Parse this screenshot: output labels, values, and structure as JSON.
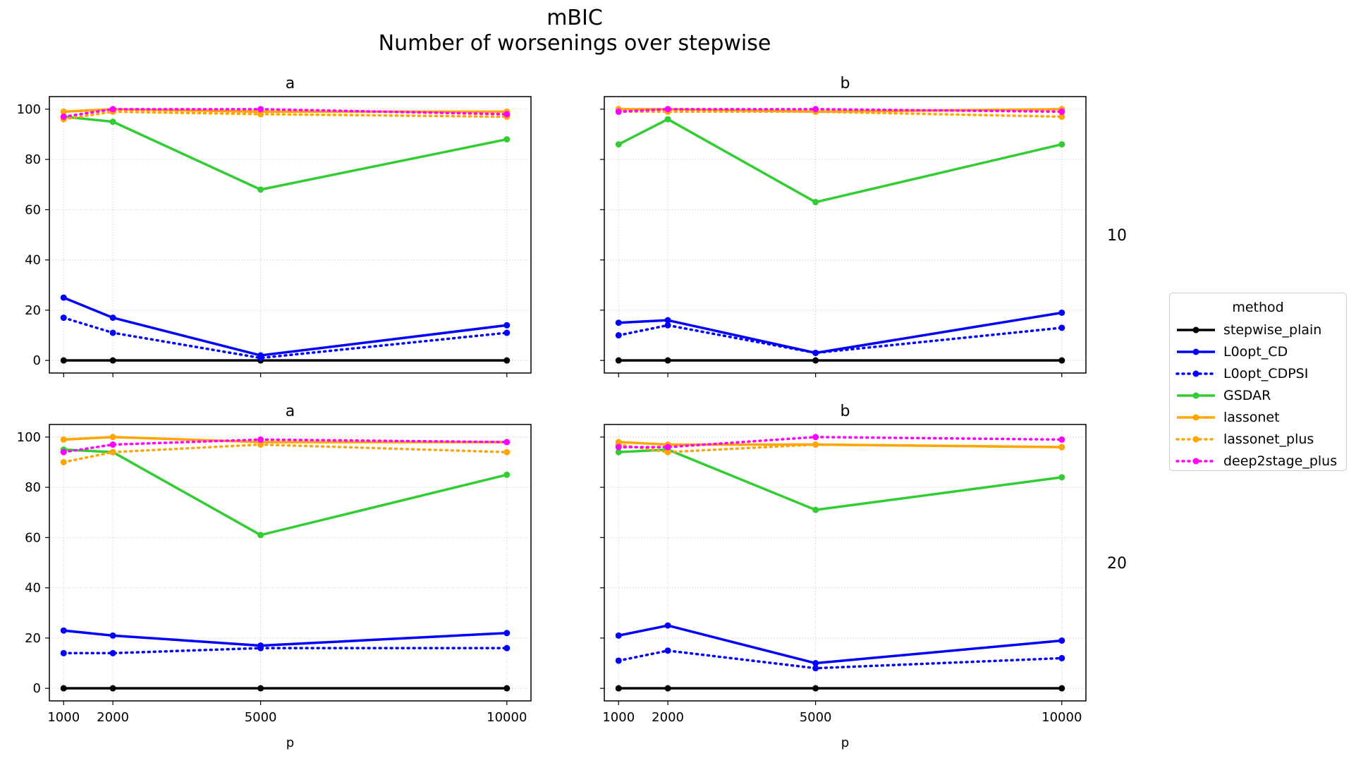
{
  "figure": {
    "title_line1": "mBIC",
    "title_line2": "Number of worsenings over stepwise"
  },
  "legend": {
    "title": "method",
    "items": [
      {
        "label": "stepwise_plain",
        "color": "#000000",
        "style": "solid"
      },
      {
        "label": "L0opt_CD",
        "color": "#0000ff",
        "style": "solid"
      },
      {
        "label": "L0opt_CDPSI",
        "color": "#0000ff",
        "style": "dotted"
      },
      {
        "label": "GSDAR",
        "color": "#32cd32",
        "style": "solid"
      },
      {
        "label": "lassonet",
        "color": "#ffa500",
        "style": "solid"
      },
      {
        "label": "lassonet_plus",
        "color": "#ffa500",
        "style": "dotted"
      },
      {
        "label": "deep2stage_plus",
        "color": "#ff00ff",
        "style": "dotted"
      }
    ]
  },
  "chart_data": {
    "type": "line",
    "x": [
      1000,
      2000,
      5000,
      10000
    ],
    "xticks": [
      "1000",
      "2000",
      "5000",
      "10000"
    ],
    "yticks": [
      "0",
      "20",
      "40",
      "60",
      "80",
      "100"
    ],
    "xlabel": "p",
    "ylim": [
      -5,
      105
    ],
    "xlim": [
      710,
      10490
    ],
    "grid": true,
    "legend_position": "right",
    "row_labels": [
      "10",
      "20"
    ],
    "panels": [
      {
        "title": "a",
        "row": 0,
        "col": 0,
        "series": [
          {
            "name": "stepwise_plain",
            "values": [
              0,
              0,
              0,
              0
            ]
          },
          {
            "name": "L0opt_CD",
            "values": [
              25,
              17,
              2,
              14
            ]
          },
          {
            "name": "L0opt_CDPSI",
            "values": [
              17,
              11,
              1,
              11
            ]
          },
          {
            "name": "GSDAR",
            "values": [
              97,
              95,
              68,
              88
            ]
          },
          {
            "name": "lassonet",
            "values": [
              99,
              100,
              99,
              99
            ]
          },
          {
            "name": "lassonet_plus",
            "values": [
              96,
              99,
              98,
              97
            ]
          },
          {
            "name": "deep2stage_plus",
            "values": [
              97,
              100,
              100,
              98
            ]
          }
        ]
      },
      {
        "title": "b",
        "row": 0,
        "col": 1,
        "series": [
          {
            "name": "stepwise_plain",
            "values": [
              0,
              0,
              0,
              0
            ]
          },
          {
            "name": "L0opt_CD",
            "values": [
              15,
              16,
              3,
              19
            ]
          },
          {
            "name": "L0opt_CDPSI",
            "values": [
              10,
              14,
              3,
              13
            ]
          },
          {
            "name": "GSDAR",
            "values": [
              86,
              96,
              63,
              86
            ]
          },
          {
            "name": "lassonet",
            "values": [
              100,
              100,
              99,
              100
            ]
          },
          {
            "name": "lassonet_plus",
            "values": [
              99,
              99,
              99,
              97
            ]
          },
          {
            "name": "deep2stage_plus",
            "values": [
              99,
              100,
              100,
              99
            ]
          }
        ]
      },
      {
        "title": "a",
        "row": 1,
        "col": 0,
        "series": [
          {
            "name": "stepwise_plain",
            "values": [
              0,
              0,
              0,
              0
            ]
          },
          {
            "name": "L0opt_CD",
            "values": [
              23,
              21,
              17,
              22
            ]
          },
          {
            "name": "L0opt_CDPSI",
            "values": [
              14,
              14,
              16,
              16
            ]
          },
          {
            "name": "GSDAR",
            "values": [
              95,
              94,
              61,
              85
            ]
          },
          {
            "name": "lassonet",
            "values": [
              99,
              100,
              98,
              98
            ]
          },
          {
            "name": "lassonet_plus",
            "values": [
              90,
              94,
              97,
              94
            ]
          },
          {
            "name": "deep2stage_plus",
            "values": [
              94,
              97,
              99,
              98
            ]
          }
        ]
      },
      {
        "title": "b",
        "row": 1,
        "col": 1,
        "series": [
          {
            "name": "stepwise_plain",
            "values": [
              0,
              0,
              0,
              0
            ]
          },
          {
            "name": "L0opt_CD",
            "values": [
              21,
              25,
              10,
              19
            ]
          },
          {
            "name": "L0opt_CDPSI",
            "values": [
              11,
              15,
              8,
              12
            ]
          },
          {
            "name": "GSDAR",
            "values": [
              94,
              95,
              71,
              84
            ]
          },
          {
            "name": "lassonet",
            "values": [
              98,
              97,
              97,
              96
            ]
          },
          {
            "name": "lassonet_plus",
            "values": [
              97,
              94,
              97,
              96
            ]
          },
          {
            "name": "deep2stage_plus",
            "values": [
              96,
              96,
              100,
              99
            ]
          }
        ]
      }
    ]
  }
}
